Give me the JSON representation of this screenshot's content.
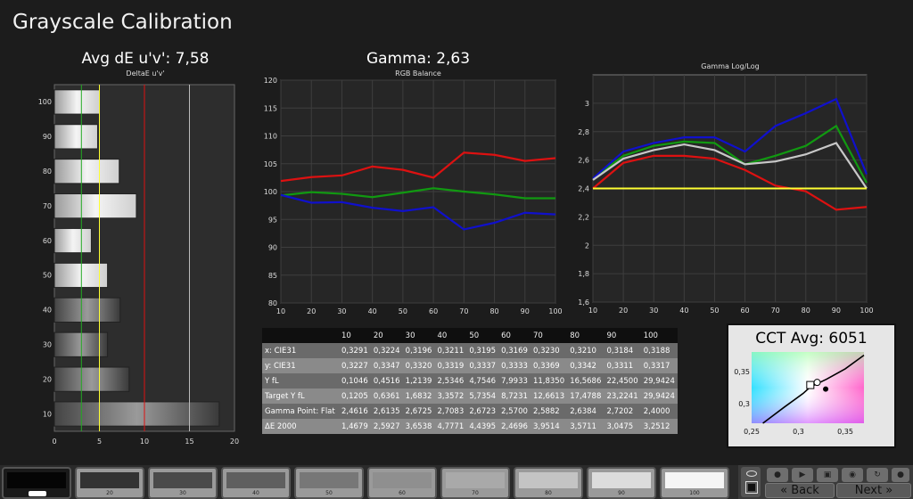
{
  "title": "Grayscale Calibration",
  "deltaE_header": "Avg dE u'v': 7,58",
  "gamma_header": "Gamma: 2,63",
  "cct_header": "CCT Avg: 6051",
  "nav": {
    "back": "Back",
    "next": "Next"
  },
  "swatch_labels": [
    "",
    "20",
    "30",
    "40",
    "50",
    "60",
    "70",
    "80",
    "90",
    "100"
  ],
  "colors": {
    "red": "#dd1111",
    "green": "#119911",
    "blue": "#1010cc",
    "gray": "#c8c8c8",
    "yellow": "#ffff33"
  },
  "table": {
    "header": [
      "",
      "10",
      "20",
      "30",
      "40",
      "50",
      "60",
      "70",
      "80",
      "90",
      "100"
    ],
    "rows": [
      {
        "label": "x: CIE31",
        "values": [
          "0,3291",
          "0,3224",
          "0,3196",
          "0,3211",
          "0,3195",
          "0,3169",
          "0,3230",
          "0,3210",
          "0,3184",
          "0,3188"
        ]
      },
      {
        "label": "y: CIE31",
        "values": [
          "0,3227",
          "0,3347",
          "0,3320",
          "0,3319",
          "0,3337",
          "0,3333",
          "0,3369",
          "0,3342",
          "0,3311",
          "0,3317"
        ]
      },
      {
        "label": "Y fL",
        "values": [
          "0,1046",
          "0,4516",
          "1,2139",
          "2,5346",
          "4,7546",
          "7,9933",
          "11,8350",
          "16,5686",
          "22,4500",
          "29,9424"
        ]
      },
      {
        "label": "Target Y fL",
        "values": [
          "0,1205",
          "0,6361",
          "1,6832",
          "3,3572",
          "5,7354",
          "8,7231",
          "12,6613",
          "17,4788",
          "23,2241",
          "29,9424"
        ]
      },
      {
        "label": "Gamma Point: Flat",
        "values": [
          "2,4616",
          "2,6135",
          "2,6725",
          "2,7083",
          "2,6723",
          "2,5700",
          "2,5882",
          "2,6384",
          "2,7202",
          "2,4000"
        ]
      },
      {
        "label": "ΔE 2000",
        "values": [
          "1,4679",
          "2,5927",
          "3,6538",
          "4,7771",
          "4,4395",
          "2,4696",
          "3,9514",
          "3,5711",
          "3,0475",
          "3,2512"
        ]
      }
    ]
  },
  "chart_data": [
    {
      "type": "bar",
      "title": "DeltaE u'v'",
      "orientation": "horizontal",
      "categories": [
        "100",
        "90",
        "80",
        "70",
        "60",
        "50",
        "40",
        "30",
        "20",
        "10"
      ],
      "values": [
        5.0,
        4.8,
        7.2,
        9.1,
        4.1,
        5.9,
        7.3,
        5.9,
        8.3,
        18.3
      ],
      "xlim": [
        0,
        20
      ],
      "xticks": [
        "0",
        "5",
        "10",
        "15",
        "20"
      ],
      "yticks": [
        "100",
        "90",
        "80",
        "70",
        "60",
        "50",
        "40",
        "30",
        "20",
        "10"
      ],
      "reference_lines": [
        3,
        5,
        10,
        15
      ]
    },
    {
      "type": "line",
      "title": "RGB Balance",
      "x": [
        10,
        20,
        30,
        40,
        50,
        60,
        70,
        80,
        90,
        100
      ],
      "ylim": [
        80,
        120
      ],
      "yticks": [
        "80",
        "85",
        "90",
        "95",
        "100",
        "105",
        "110",
        "115",
        "120"
      ],
      "xticks": [
        "10",
        "20",
        "30",
        "40",
        "50",
        "60",
        "70",
        "80",
        "90",
        "100"
      ],
      "series": [
        {
          "color": "red",
          "values": [
            101.9,
            102.6,
            102.9,
            104.5,
            103.9,
            102.5,
            107.0,
            106.6,
            105.5,
            106.0
          ]
        },
        {
          "color": "green",
          "values": [
            99.3,
            99.9,
            99.6,
            99.0,
            99.8,
            100.6,
            100.0,
            99.5,
            98.8,
            98.8
          ]
        },
        {
          "color": "blue",
          "values": [
            99.4,
            98.0,
            98.1,
            97.1,
            96.5,
            97.2,
            93.2,
            94.4,
            96.2,
            95.9
          ]
        }
      ]
    },
    {
      "type": "line",
      "title": "Gamma Log/Log",
      "x": [
        10,
        20,
        30,
        40,
        50,
        60,
        70,
        80,
        90,
        100
      ],
      "ylim": [
        1.6,
        3.2
      ],
      "yticks": [
        "1,6",
        "1,8",
        "2",
        "2,2",
        "2,4",
        "2,6",
        "2,8",
        "3"
      ],
      "xticks": [
        "10",
        "20",
        "30",
        "40",
        "50",
        "60",
        "70",
        "80",
        "90",
        "100"
      ],
      "series": [
        {
          "color": "red",
          "values": [
            2.4,
            2.58,
            2.63,
            2.63,
            2.61,
            2.53,
            2.42,
            2.38,
            2.25,
            2.27
          ]
        },
        {
          "color": "green",
          "values": [
            2.47,
            2.63,
            2.7,
            2.73,
            2.72,
            2.57,
            2.63,
            2.7,
            2.84,
            2.44
          ]
        },
        {
          "color": "blue",
          "values": [
            2.47,
            2.66,
            2.72,
            2.76,
            2.76,
            2.66,
            2.84,
            2.93,
            3.03,
            2.5
          ]
        },
        {
          "color": "gray",
          "values": [
            2.46,
            2.61,
            2.67,
            2.71,
            2.67,
            2.57,
            2.59,
            2.64,
            2.72,
            2.4
          ]
        },
        {
          "color": "yellow",
          "values": [
            2.4,
            2.4,
            2.4,
            2.4,
            2.4,
            2.4,
            2.4,
            2.4,
            2.4,
            2.4
          ]
        }
      ]
    },
    {
      "type": "scatter",
      "title": "CCT Avg: 6051",
      "xlim": [
        0.25,
        0.37
      ],
      "ylim": [
        0.27,
        0.38
      ],
      "xticks": [
        "0,25",
        "0,3",
        "0,35"
      ],
      "yticks": [
        "0,3",
        "0,35"
      ],
      "points": [
        {
          "x": 0.3127,
          "y": 0.329,
          "marker": "target-square"
        },
        {
          "x": 0.32,
          "y": 0.333,
          "marker": "measured-circle"
        },
        {
          "x": 0.3291,
          "y": 0.3227,
          "marker": "measured-dot"
        }
      ]
    }
  ]
}
